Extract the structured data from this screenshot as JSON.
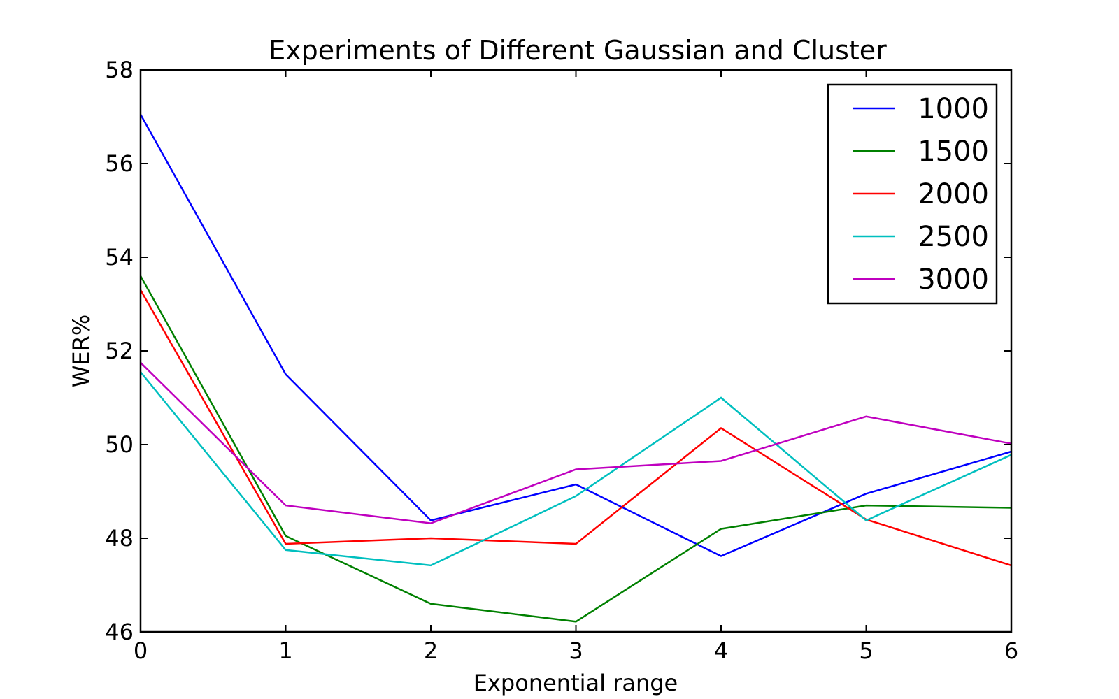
{
  "chart_data": {
    "type": "line",
    "title": "Experiments of Different Gaussian and Cluster",
    "xlabel": "Exponential range",
    "ylabel": "WER%",
    "xlim": [
      0,
      6
    ],
    "ylim": [
      46,
      58
    ],
    "xticks": [
      0,
      1,
      2,
      3,
      4,
      5,
      6
    ],
    "yticks": [
      46,
      48,
      50,
      52,
      54,
      56,
      58
    ],
    "xtick_labels": [
      "0",
      "1",
      "2",
      "3",
      "4",
      "5",
      "6"
    ],
    "ytick_labels": [
      "46",
      "48",
      "50",
      "52",
      "54",
      "56",
      "58"
    ],
    "grid": false,
    "legend_position": "top-right",
    "x": [
      0,
      1,
      2,
      3,
      4,
      5,
      6
    ],
    "series": [
      {
        "name": "1000",
        "color": "#0000ff",
        "values": [
          57.05,
          51.5,
          48.38,
          49.15,
          47.62,
          48.95,
          49.85
        ]
      },
      {
        "name": "1500",
        "color": "#008000",
        "values": [
          53.6,
          48.05,
          46.6,
          46.22,
          48.2,
          48.7,
          48.65
        ]
      },
      {
        "name": "2000",
        "color": "#ff0000",
        "values": [
          53.3,
          47.88,
          48.0,
          47.88,
          50.35,
          48.4,
          47.42
        ]
      },
      {
        "name": "2500",
        "color": "#00bfbf",
        "values": [
          51.55,
          47.75,
          47.42,
          48.9,
          51.0,
          48.38,
          49.78
        ]
      },
      {
        "name": "3000",
        "color": "#bf00bf",
        "values": [
          51.75,
          48.7,
          48.32,
          49.47,
          49.65,
          50.6,
          50.02
        ]
      }
    ]
  }
}
